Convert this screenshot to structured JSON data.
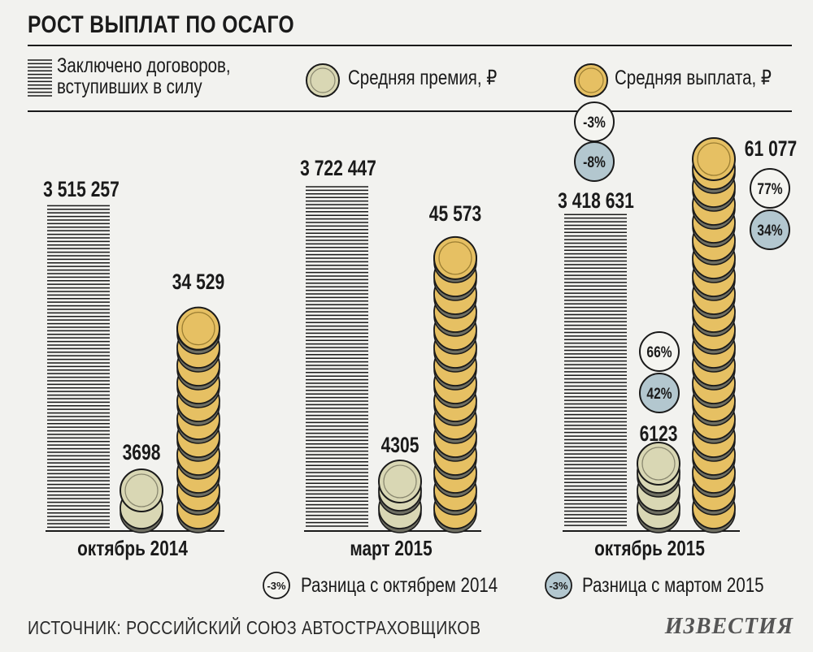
{
  "title": "РОСТ ВЫПЛАТ ПО ОСАГО",
  "legend": {
    "contracts_line1": "Заключено договоров,",
    "contracts_line2": "вступивших в силу",
    "premium": "Средняя премия, ₽",
    "payout": "Средняя выплата, ₽"
  },
  "colors": {
    "premium_coin": "#d9d7b4",
    "payout_coin": "#e6c063",
    "badge_oct": "#f4f4f0",
    "badge_mar": "#b3c7cf"
  },
  "chart_data": {
    "type": "bar",
    "categories": [
      "октябрь 2014",
      "март 2015",
      "октябрь 2015"
    ],
    "series": [
      {
        "name": "Заключено договоров, вступивших в силу",
        "values": [
          3515257,
          3722447,
          3418631
        ],
        "labels": [
          "3 515 257",
          "3 722 447",
          "3 418 631"
        ]
      },
      {
        "name": "Средняя премия, ₽",
        "values": [
          3698,
          4305,
          6123
        ],
        "labels": [
          "3698",
          "4305",
          "6123"
        ]
      },
      {
        "name": "Средняя выплата, ₽",
        "values": [
          34529,
          45573,
          61077
        ],
        "labels": [
          "34 529",
          "45 573",
          "61 077"
        ]
      }
    ],
    "changes": {
      "contracts_oct2015": {
        "vs_oct2014": "-3%",
        "vs_mar2015": "-8%"
      },
      "premium_oct2015": {
        "vs_oct2014": "66%",
        "vs_mar2015": "42%"
      },
      "payout_oct2015": {
        "vs_oct2014": "77%",
        "vs_mar2015": "34%"
      }
    },
    "badge_legend": [
      {
        "badge": "-3%",
        "label": "Разница с октябрем 2014"
      },
      {
        "badge": "-3%",
        "label": "Разница с мартом 2015"
      }
    ]
  },
  "source": "ИСТОЧНИК: РОССИЙСКИЙ СОЮЗ АВТОСТРАХОВЩИКОВ",
  "logo": "ИЗВЕСТИЯ"
}
